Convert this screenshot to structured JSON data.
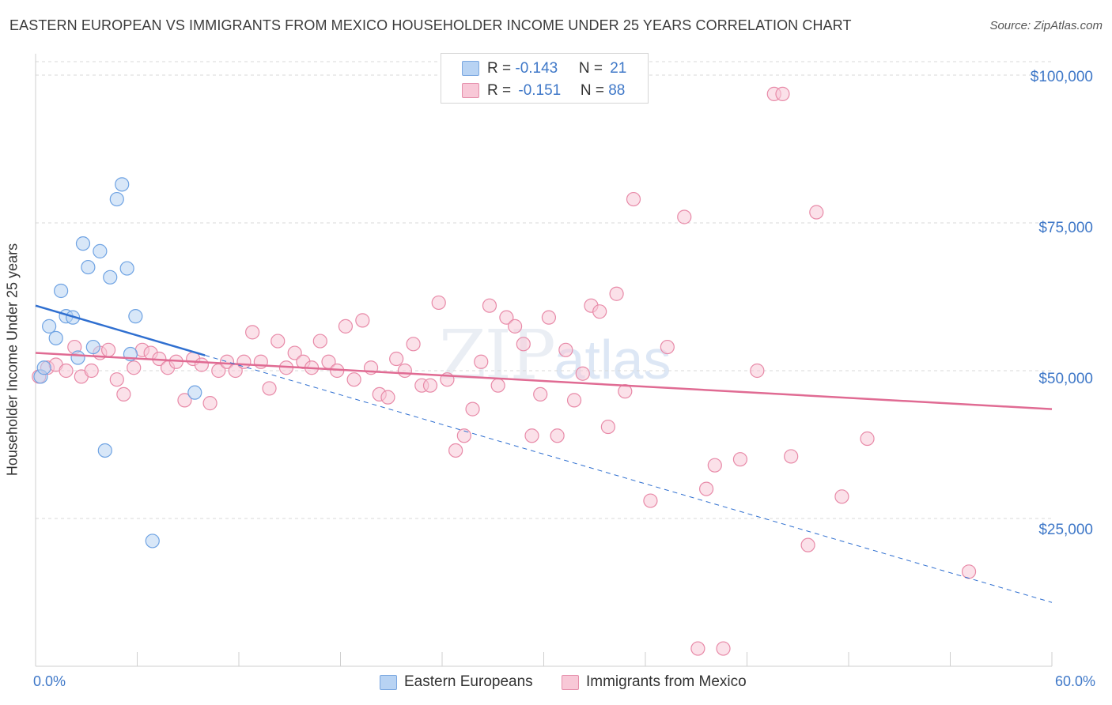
{
  "title": "EASTERN EUROPEAN VS IMMIGRANTS FROM MEXICO HOUSEHOLDER INCOME UNDER 25 YEARS CORRELATION CHART",
  "source": "Source: ZipAtlas.com",
  "watermark": {
    "zip": "ZIP",
    "atlas": "atlas"
  },
  "legend_stats": {
    "rows": [
      {
        "r_label": "R = ",
        "r_value": "-0.143",
        "n_label": "N = ",
        "n_value": "21"
      },
      {
        "r_label": "R = ",
        "r_value": "-0.151",
        "n_label": "N = ",
        "n_value": "88"
      }
    ]
  },
  "colors": {
    "blue": "#6fa3e3",
    "blue_fill": "#b8d3f3",
    "blue_line": "#2f6fd0",
    "pink": "#e88aa8",
    "pink_fill": "#f8c8d7",
    "pink_line": "#e06b93",
    "tick_text": "#3f78c8",
    "grid": "#d8d8d8"
  },
  "chart_data": {
    "type": "scatter",
    "title": "EASTERN EUROPEAN VS IMMIGRANTS FROM MEXICO HOUSEHOLDER INCOME UNDER 25 YEARS CORRELATION CHART",
    "xlabel": "",
    "ylabel": "Householder Income Under 25 years",
    "xlim": [
      0,
      60
    ],
    "ylim": [
      0,
      102000
    ],
    "x_tick_labels": [
      "0.0%",
      "60.0%"
    ],
    "y_ticks": [
      25000,
      50000,
      75000,
      100000
    ],
    "y_tick_labels": [
      "$25,000",
      "$50,000",
      "$75,000",
      "$100,000"
    ],
    "grid": true,
    "legend": "bottom-center",
    "series": [
      {
        "name": "Eastern Europeans",
        "points": [
          [
            0.3,
            49000
          ],
          [
            0.5,
            50500
          ],
          [
            0.8,
            57500
          ],
          [
            1.2,
            55500
          ],
          [
            1.5,
            63500
          ],
          [
            1.8,
            59200
          ],
          [
            2.2,
            59000
          ],
          [
            2.5,
            52200
          ],
          [
            2.8,
            71500
          ],
          [
            3.1,
            67500
          ],
          [
            3.4,
            54000
          ],
          [
            3.8,
            70200
          ],
          [
            4.1,
            36500
          ],
          [
            4.4,
            65800
          ],
          [
            4.8,
            79000
          ],
          [
            5.1,
            81500
          ],
          [
            5.4,
            67300
          ],
          [
            5.6,
            52800
          ],
          [
            5.9,
            59200
          ],
          [
            6.9,
            21200
          ],
          [
            9.4,
            46300
          ]
        ],
        "trend": {
          "x": [
            0,
            10
          ],
          "y": [
            61000,
            52600
          ]
        },
        "trend_extension": {
          "x": [
            10,
            60
          ],
          "y": [
            52600,
            10800
          ]
        }
      },
      {
        "name": "Immigrants from Mexico",
        "points": [
          [
            0.2,
            49000
          ],
          [
            0.7,
            50500
          ],
          [
            1.2,
            51000
          ],
          [
            1.8,
            50000
          ],
          [
            2.3,
            54000
          ],
          [
            2.7,
            49000
          ],
          [
            3.3,
            50000
          ],
          [
            3.8,
            53000
          ],
          [
            4.3,
            53500
          ],
          [
            4.8,
            48500
          ],
          [
            5.2,
            46000
          ],
          [
            5.8,
            50500
          ],
          [
            6.3,
            53500
          ],
          [
            6.8,
            53000
          ],
          [
            7.3,
            52000
          ],
          [
            7.8,
            50500
          ],
          [
            8.3,
            51500
          ],
          [
            8.8,
            45000
          ],
          [
            9.3,
            52000
          ],
          [
            9.8,
            51000
          ],
          [
            10.3,
            44500
          ],
          [
            10.8,
            50000
          ],
          [
            11.3,
            51500
          ],
          [
            11.8,
            50000
          ],
          [
            12.3,
            51500
          ],
          [
            12.8,
            56500
          ],
          [
            13.3,
            51500
          ],
          [
            13.8,
            47000
          ],
          [
            14.3,
            55000
          ],
          [
            14.8,
            50500
          ],
          [
            15.3,
            53000
          ],
          [
            15.8,
            51500
          ],
          [
            16.3,
            50500
          ],
          [
            16.8,
            55000
          ],
          [
            17.3,
            51500
          ],
          [
            17.8,
            50000
          ],
          [
            18.3,
            57500
          ],
          [
            18.8,
            48500
          ],
          [
            19.3,
            58500
          ],
          [
            19.8,
            50500
          ],
          [
            20.3,
            46000
          ],
          [
            20.8,
            45500
          ],
          [
            21.3,
            52000
          ],
          [
            21.8,
            50000
          ],
          [
            22.3,
            54500
          ],
          [
            22.8,
            47500
          ],
          [
            23.3,
            47500
          ],
          [
            23.8,
            61500
          ],
          [
            24.3,
            48500
          ],
          [
            24.8,
            36500
          ],
          [
            25.3,
            39000
          ],
          [
            25.8,
            43500
          ],
          [
            26.3,
            51500
          ],
          [
            26.8,
            61000
          ],
          [
            27.3,
            47500
          ],
          [
            27.8,
            59000
          ],
          [
            28.3,
            57500
          ],
          [
            28.8,
            54500
          ],
          [
            29.3,
            39000
          ],
          [
            29.8,
            46000
          ],
          [
            30.3,
            59000
          ],
          [
            30.8,
            39000
          ],
          [
            31.3,
            53500
          ],
          [
            31.8,
            45000
          ],
          [
            32.3,
            49500
          ],
          [
            32.8,
            61000
          ],
          [
            33.3,
            60000
          ],
          [
            33.8,
            40500
          ],
          [
            34.3,
            63000
          ],
          [
            34.8,
            46500
          ],
          [
            35.3,
            79000
          ],
          [
            36.3,
            28000
          ],
          [
            37.3,
            54000
          ],
          [
            38.3,
            76000
          ],
          [
            39.1,
            3000
          ],
          [
            39.6,
            30000
          ],
          [
            40.1,
            34000
          ],
          [
            40.6,
            3000
          ],
          [
            41.6,
            35000
          ],
          [
            42.6,
            50000
          ],
          [
            43.6,
            96800
          ],
          [
            44.1,
            96800
          ],
          [
            44.6,
            35500
          ],
          [
            45.6,
            20500
          ],
          [
            46.1,
            76800
          ],
          [
            47.6,
            28700
          ],
          [
            49.1,
            38500
          ],
          [
            55.1,
            16000
          ]
        ],
        "trend": {
          "x": [
            0,
            60
          ],
          "y": [
            53000,
            43500
          ]
        }
      }
    ]
  }
}
